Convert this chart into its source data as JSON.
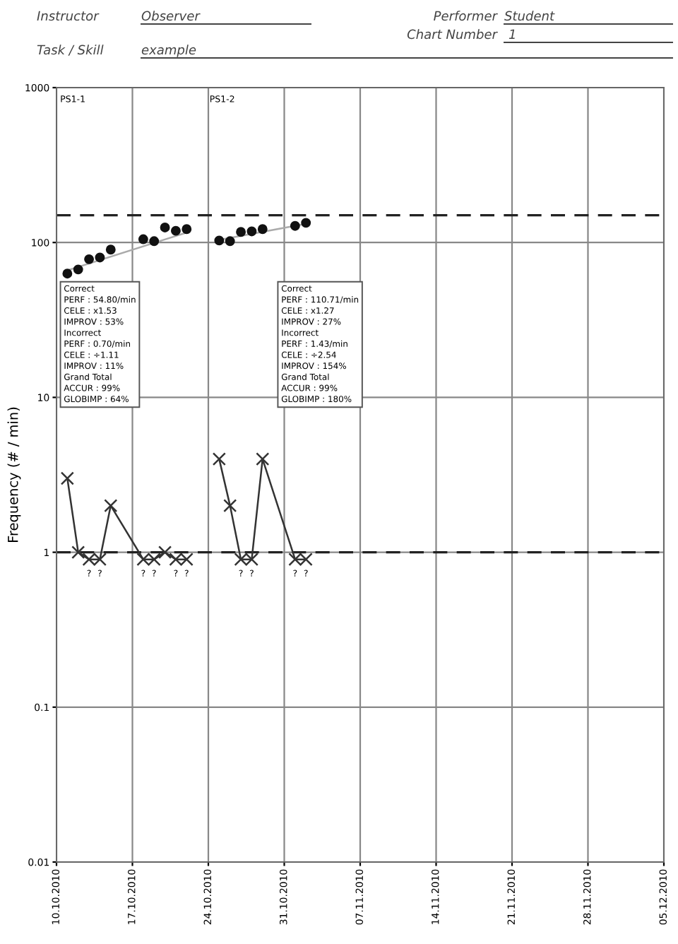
{
  "chart_data": {
    "type": "scatter",
    "ylabel": "Frequency (# / min)",
    "log": "y",
    "grid": true,
    "xlim": [
      "2010-10-10",
      "2010-12-05"
    ],
    "xticks": [
      {
        "value": "2010-10-10",
        "label": "10.10.2010"
      },
      {
        "value": "2010-10-17",
        "label": "17.10.2010"
      },
      {
        "value": "2010-10-24",
        "label": "24.10.2010"
      },
      {
        "value": "2010-10-31",
        "label": "31.10.2010"
      },
      {
        "value": "2010-11-07",
        "label": "07.11.2010"
      },
      {
        "value": "2010-11-14",
        "label": "14.11.2010"
      },
      {
        "value": "2010-11-21",
        "label": "21.11.2010"
      },
      {
        "value": "2010-11-28",
        "label": "28.11.2010"
      },
      {
        "value": "2010-12-05",
        "label": "05.12.2010"
      }
    ],
    "ylim": [
      0.01,
      1000
    ],
    "yticks": [
      0.01,
      0.1,
      1,
      10,
      100,
      1000
    ],
    "series": [
      {
        "marker": "circle",
        "color": "#111111",
        "x": [
          "2010-10-11",
          "2010-10-12",
          "2010-10-13",
          "2010-10-14",
          "2010-10-15",
          "2010-10-18",
          "2010-10-19",
          "2010-10-20",
          "2010-10-21",
          "2010-10-22"
        ],
        "values": [
          63,
          67,
          78,
          80,
          90,
          105,
          102,
          125,
          119,
          122
        ]
      },
      {
        "marker": "circle",
        "color": "#111111",
        "x": [
          "2010-10-25",
          "2010-10-26",
          "2010-10-27",
          "2010-10-28",
          "2010-10-29",
          "2010-11-01",
          "2010-11-02"
        ],
        "values": [
          103,
          102,
          117,
          118,
          122,
          128,
          134
        ]
      },
      {
        "type": "line",
        "marker": "cross",
        "line_style": "solid",
        "color": "#333333",
        "x": [
          "2010-10-11",
          "2010-10-12",
          "2010-10-13",
          "2010-10-14",
          "2010-10-15",
          "2010-10-18",
          "2010-10-19",
          "2010-10-20",
          "2010-10-21",
          "2010-10-22"
        ],
        "values": [
          3,
          1,
          0.9,
          0.9,
          2,
          0.9,
          0.9,
          1,
          0.9,
          0.9
        ]
      },
      {
        "type": "line",
        "marker": "cross",
        "line_style": "solid",
        "color": "#333333",
        "x": [
          "2010-10-25",
          "2010-10-26",
          "2010-10-27",
          "2010-10-28",
          "2010-10-29",
          "2010-11-01",
          "2010-11-02"
        ],
        "values": [
          4,
          2,
          0.9,
          0.9,
          4,
          0.9,
          0.9
        ]
      },
      {
        "type": "line",
        "marker": "none",
        "line_style": "solid",
        "color": "#aaaaaa",
        "x": [
          "2010-10-11",
          "2010-10-22"
        ],
        "values": [
          66,
          116
        ]
      },
      {
        "type": "line",
        "marker": "none",
        "line_style": "solid",
        "color": "#aaaaaa",
        "x": [
          "2010-10-25",
          "2010-11-02"
        ],
        "values": [
          104,
          132
        ]
      }
    ],
    "ref_lines": [
      {
        "axis": "y",
        "value": 150,
        "color": "#222222",
        "line_style": "dashed"
      },
      {
        "axis": "y",
        "value": 1,
        "color": "#222222",
        "line_style": "dashed"
      }
    ],
    "annotations": [
      "Instructor",
      "Observer",
      "Performer",
      "Student",
      "Chart Number",
      "1",
      "Task / Skill",
      "example",
      "PS1-1",
      "PS1-2",
      "Correct\nPERF : 54.80/min\nCELE : x1.53\nIMPROV : 53%\nIncorrect\nPERF : 0.70/min\nCELE : ÷1.11\nIMPROV : 11%\nGrand Total\nACCUR : 99%\nGLOBIMP : 64%",
      "Correct\nPERF : 110.71/min\nCELE : x1.27\nIMPROV : 27%\nIncorrect\nPERF : 1.43/min\nCELE : ÷2.54\nIMPROV : 154%\nGrand Total\nACCUR : 99%\nGLOBIMP : 180%",
      "?",
      "?",
      "?",
      "?",
      "?",
      "?",
      "?",
      "?",
      "?",
      "?"
    ]
  }
}
